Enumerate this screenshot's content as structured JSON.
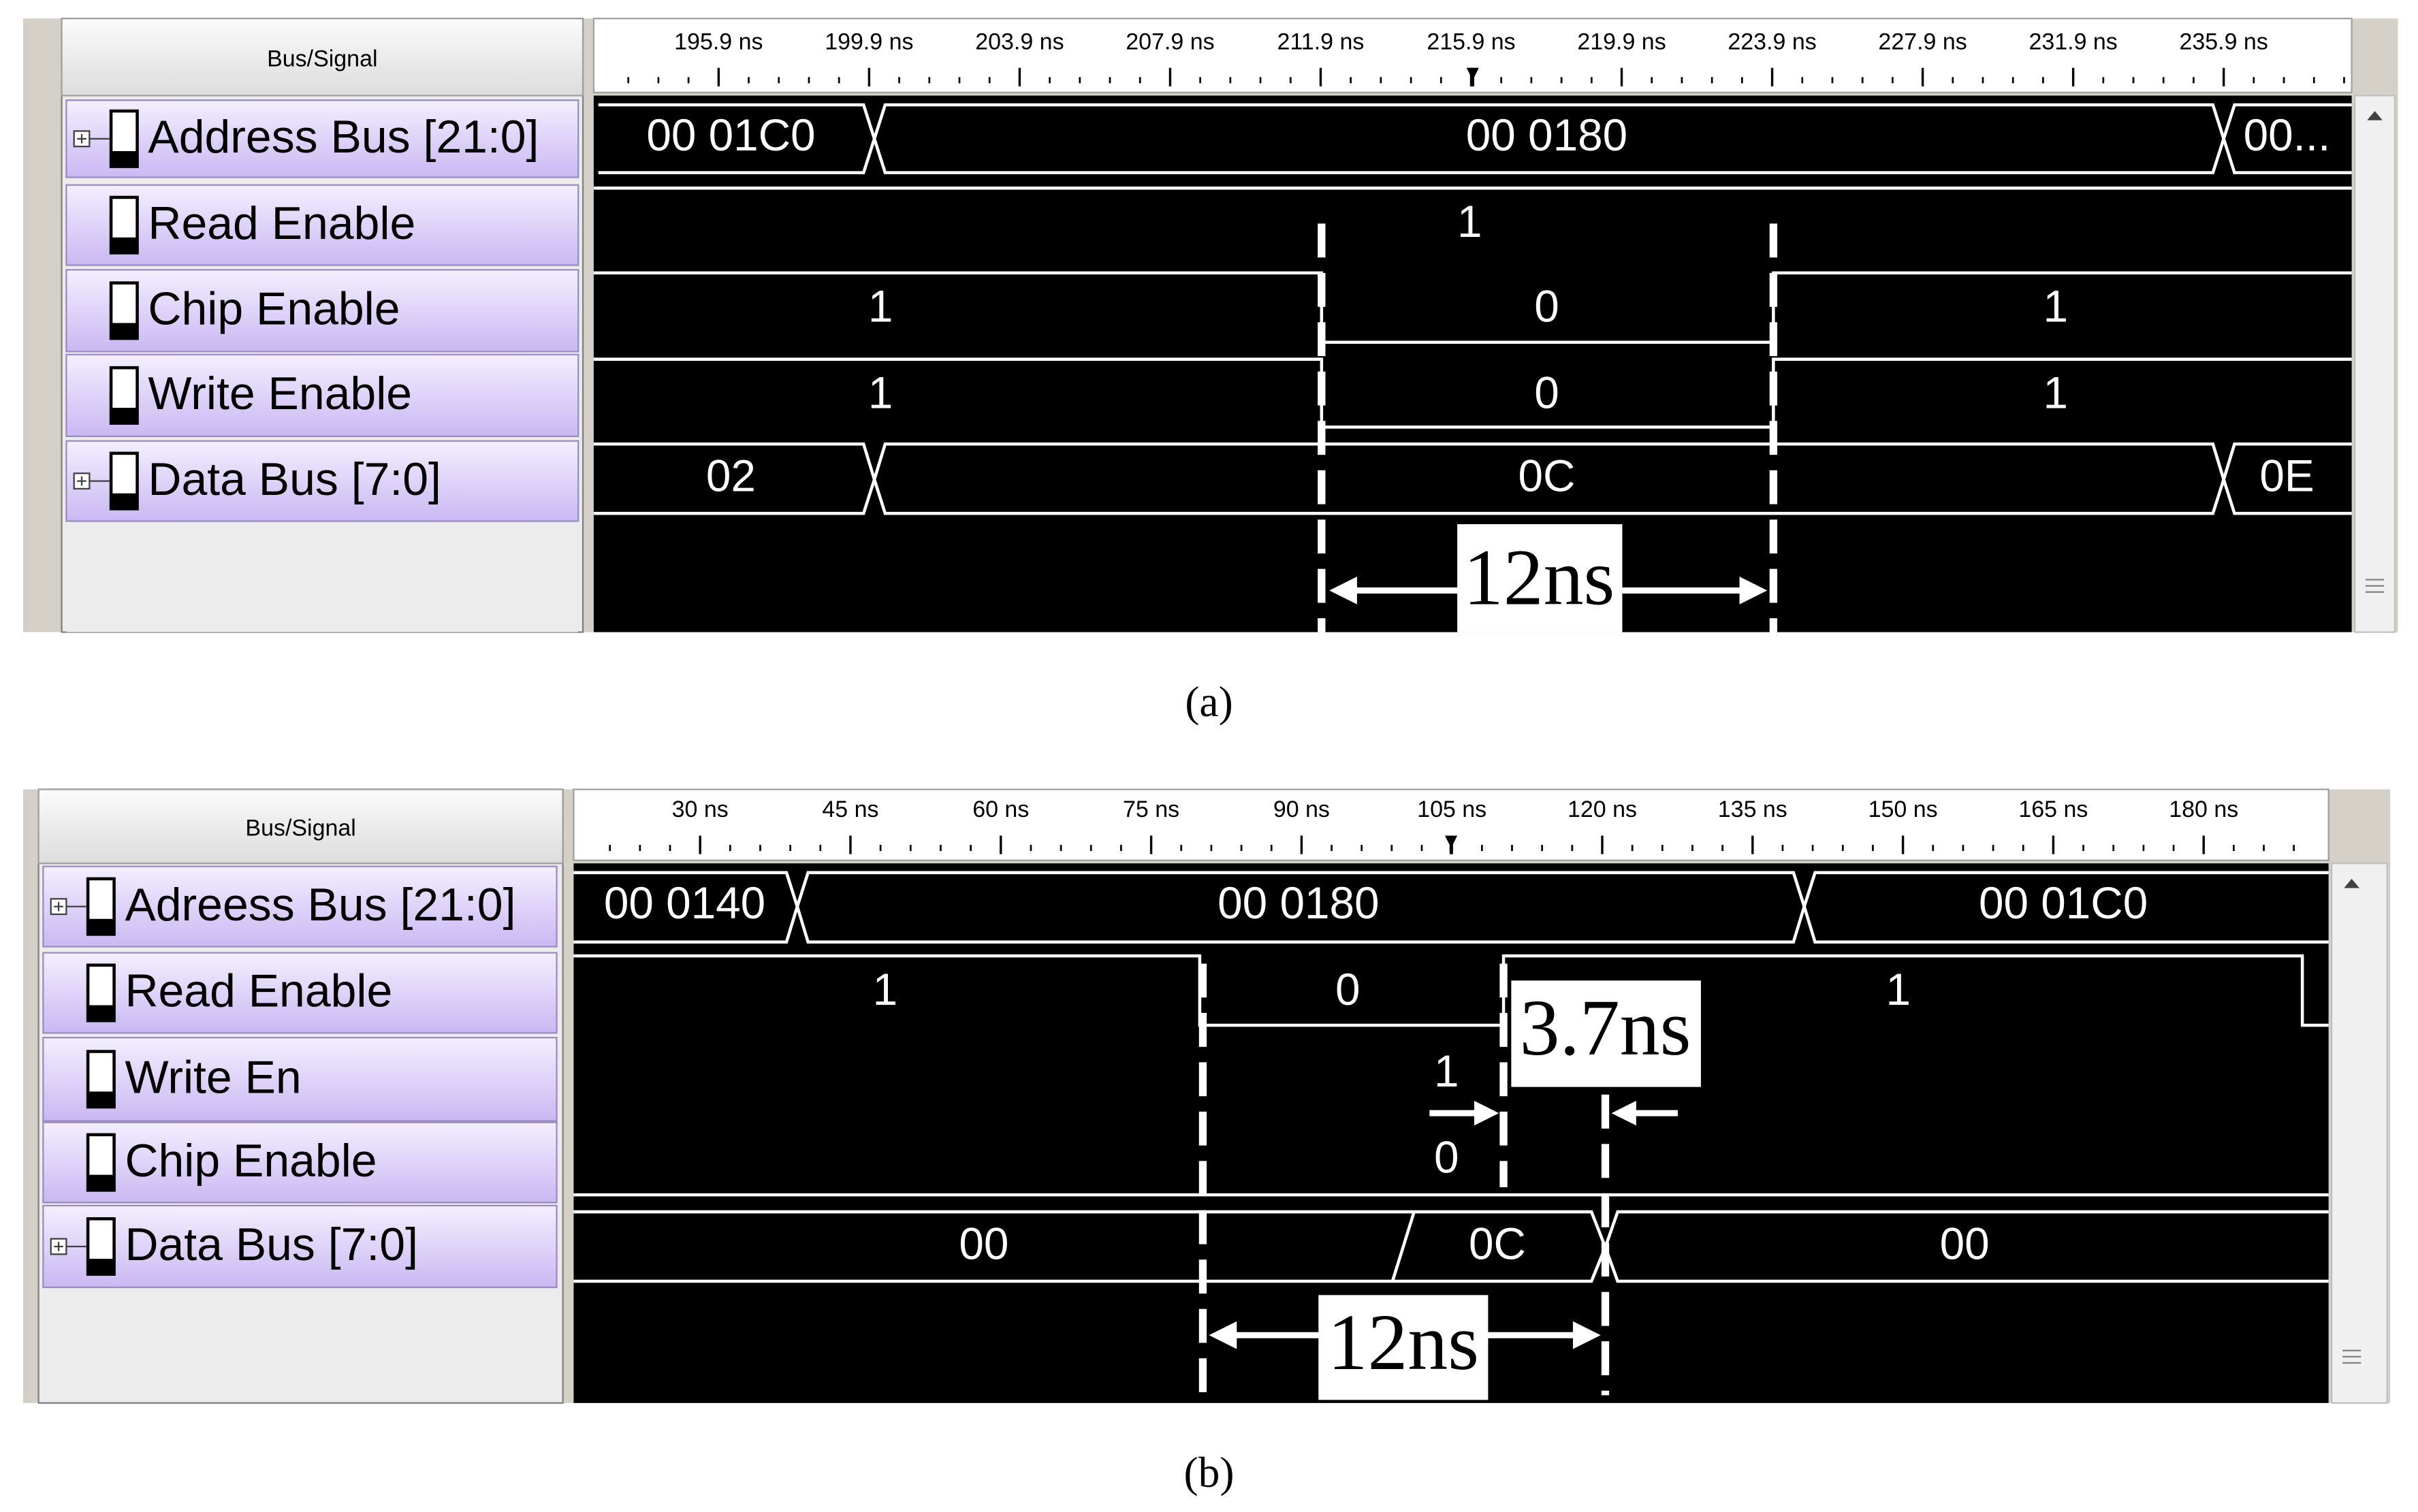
{
  "panels": [
    {
      "caption": "(a)",
      "header": "Bus/Signal",
      "ticks": [
        "195.9 ns",
        "199.9 ns",
        "203.9 ns",
        "207.9 ns",
        "211.9 ns",
        "215.9 ns",
        "219.9 ns",
        "223.9 ns",
        "227.9 ns",
        "231.9 ns",
        "235.9 ns"
      ],
      "signals": [
        {
          "name": "Address Bus [21:0]",
          "expandable": true,
          "segments": [
            "00 01C0",
            "00 0180",
            "00..."
          ]
        },
        {
          "name": "Read Enable",
          "expandable": false,
          "segments": [
            "1"
          ]
        },
        {
          "name": "Chip Enable",
          "expandable": false,
          "segments": [
            "1",
            "0",
            "1"
          ]
        },
        {
          "name": "Write Enable",
          "expandable": false,
          "segments": [
            "1",
            "0",
            "1"
          ]
        },
        {
          "name": "Data Bus [7:0]",
          "expandable": true,
          "segments": [
            "02",
            "0C",
            "0E"
          ]
        }
      ],
      "annotations": [
        "12ns"
      ]
    },
    {
      "caption": "(b)",
      "header": "Bus/Signal",
      "ticks": [
        "30 ns",
        "45 ns",
        "60 ns",
        "75 ns",
        "90 ns",
        "105 ns",
        "120 ns",
        "135 ns",
        "150 ns",
        "165 ns",
        "180 ns"
      ],
      "signals": [
        {
          "name": "Adreess Bus [21:0]",
          "expandable": true,
          "segments": [
            "00 0140",
            "00 0180",
            "00 01C0"
          ]
        },
        {
          "name": "Read Enable",
          "expandable": false,
          "segments": [
            "1",
            "0",
            "1"
          ]
        },
        {
          "name": "Write En",
          "expandable": false,
          "segments": [
            "1"
          ]
        },
        {
          "name": "Chip Enable",
          "expandable": false,
          "segments": [
            "0"
          ]
        },
        {
          "name": "Data Bus [7:0]",
          "expandable": true,
          "segments": [
            "00",
            "0C",
            "00"
          ]
        }
      ],
      "annotations": [
        "3.7ns",
        "12ns"
      ]
    }
  ]
}
